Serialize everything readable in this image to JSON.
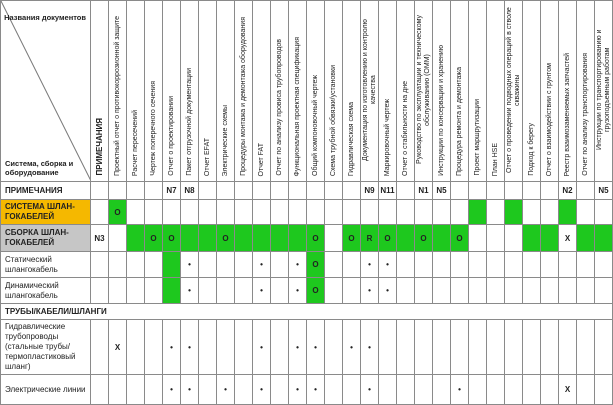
{
  "corner": {
    "top": "Названия документов",
    "bottom": "Система, сборка и оборудование"
  },
  "remarks_header": "ПРИМЕЧАНИЯ",
  "columns": [
    "Проектный отчет о противокоррозионной защите",
    "Расчет пересечений",
    "Чертеж поперечного сечения",
    "Отчет о проектировании",
    "Пакет отгрузочной документации",
    "Отчет EFAT",
    "Электрические схемы",
    "Процедуры монтажа и демонтажа оборудования",
    "Отчет FAT",
    "Отчет по анализу провиса трубопроводов",
    "Функциональная проектная спецификация",
    "Общий компоновочный чертеж",
    "Схема трубной обвязки/установки",
    "Гидравлическая схема",
    "Документация по изготовлению и контролю качества",
    "Маркировочный чертеж",
    "Отчет о стабильности на дне",
    "Руководство по эксплуатации и техническому обслуживанию (ОММ)",
    "Инструкции по консервации и хранению",
    "Процедура ремонта и демонтажа",
    "Проект маршрутизации",
    "План HSE",
    "Отчет о проведении подводных операций в стволе скважины",
    "Подход к берегу",
    "Отчет о взаимодействии с грунтом",
    "Реестр взаимозаменяемых запчастей",
    "Отчет по анализу транспортирования",
    "Инструкции по транспортированию и грузоподъемным работам"
  ],
  "colors": {
    "green": "#1ec81e",
    "yellow": "#f5b800",
    "gray": "#c6c6c6"
  },
  "rows": [
    {
      "label": "ПРИМЕЧАНИЯ",
      "style": "bold",
      "h": 18,
      "remark": "",
      "cells": [
        "",
        "",
        "",
        "N7",
        "N8",
        "",
        "",
        "",
        "",
        "",
        "",
        "",
        "",
        "",
        "N9",
        "N11",
        "",
        "N1",
        "N5",
        "",
        "",
        "",
        "",
        "",
        "",
        "N2",
        "",
        "N5"
      ],
      "green": []
    },
    {
      "label": "СИСТЕМА ШЛАН-ГОКАБЕЛЕЙ",
      "style": "bold yel",
      "h": 25,
      "remark": "",
      "cells": [
        "O",
        "",
        "",
        "",
        "",
        "",
        "",
        "",
        "",
        "",
        "",
        "",
        "",
        "",
        "",
        "",
        "",
        "",
        "",
        "",
        "",
        "",
        "",
        "",
        "",
        "",
        "",
        ""
      ],
      "green": [
        1,
        21,
        23,
        26
      ]
    },
    {
      "label": "СБОРКА ШЛАН-ГОКАБЕЛЕЙ",
      "style": "bold gry",
      "h": 27,
      "remark": "N3",
      "cells": [
        "",
        "",
        "O",
        "O",
        "",
        "",
        "O",
        "",
        "",
        "",
        "",
        "O",
        "",
        "O",
        "R",
        "O",
        "",
        "O",
        "",
        "O",
        "",
        "",
        "",
        "",
        "",
        "X",
        "",
        ""
      ],
      "green": [
        2,
        3,
        4,
        5,
        6,
        7,
        8,
        9,
        10,
        11,
        12,
        14,
        15,
        16,
        17,
        18,
        19,
        20,
        24,
        25,
        27,
        28
      ]
    },
    {
      "label": "Статический шлангокабель",
      "style": "",
      "h": 26,
      "remark": "",
      "cells": [
        "",
        "",
        "",
        "",
        "•",
        "",
        "",
        "",
        "•",
        "",
        "•",
        "O",
        "",
        "",
        "•",
        "•",
        "",
        "",
        "",
        "",
        "",
        "",
        "",
        "",
        "",
        "",
        "",
        ""
      ],
      "green": [
        4,
        12
      ]
    },
    {
      "label": "Динамический шлангокабель",
      "style": "",
      "h": 26,
      "remark": "",
      "cells": [
        "",
        "",
        "",
        "",
        "•",
        "",
        "",
        "",
        "•",
        "",
        "•",
        "O",
        "",
        "",
        "•",
        "•",
        "",
        "",
        "",
        "",
        "",
        "",
        "",
        "",
        "",
        "",
        "",
        ""
      ],
      "green": [
        4,
        12
      ]
    },
    {
      "section": "ТРУБЫ/КАБЕЛИ/ШЛАНГИ",
      "h": 16
    },
    {
      "label": "Гидравлические трубопроводы (стальные трубы/ термопластиковый шланг)",
      "style": "",
      "h": 52,
      "remark": "",
      "cells": [
        "X",
        "",
        "",
        "•",
        "•",
        "",
        "",
        "",
        "•",
        "",
        "•",
        "•",
        "",
        "•",
        "•",
        "",
        "",
        "",
        "",
        "",
        "",
        "",
        "",
        "",
        "",
        "",
        "",
        ""
      ],
      "green": []
    },
    {
      "label": "Электрические линии",
      "style": "",
      "h": 30,
      "remark": "",
      "cells": [
        "",
        "",
        "",
        "•",
        "•",
        "",
        "•",
        "",
        "•",
        "",
        "•",
        "•",
        "",
        "",
        "•",
        "",
        "",
        "",
        "",
        "•",
        "",
        "",
        "",
        "",
        "",
        "X",
        "",
        ""
      ],
      "green": []
    }
  ]
}
